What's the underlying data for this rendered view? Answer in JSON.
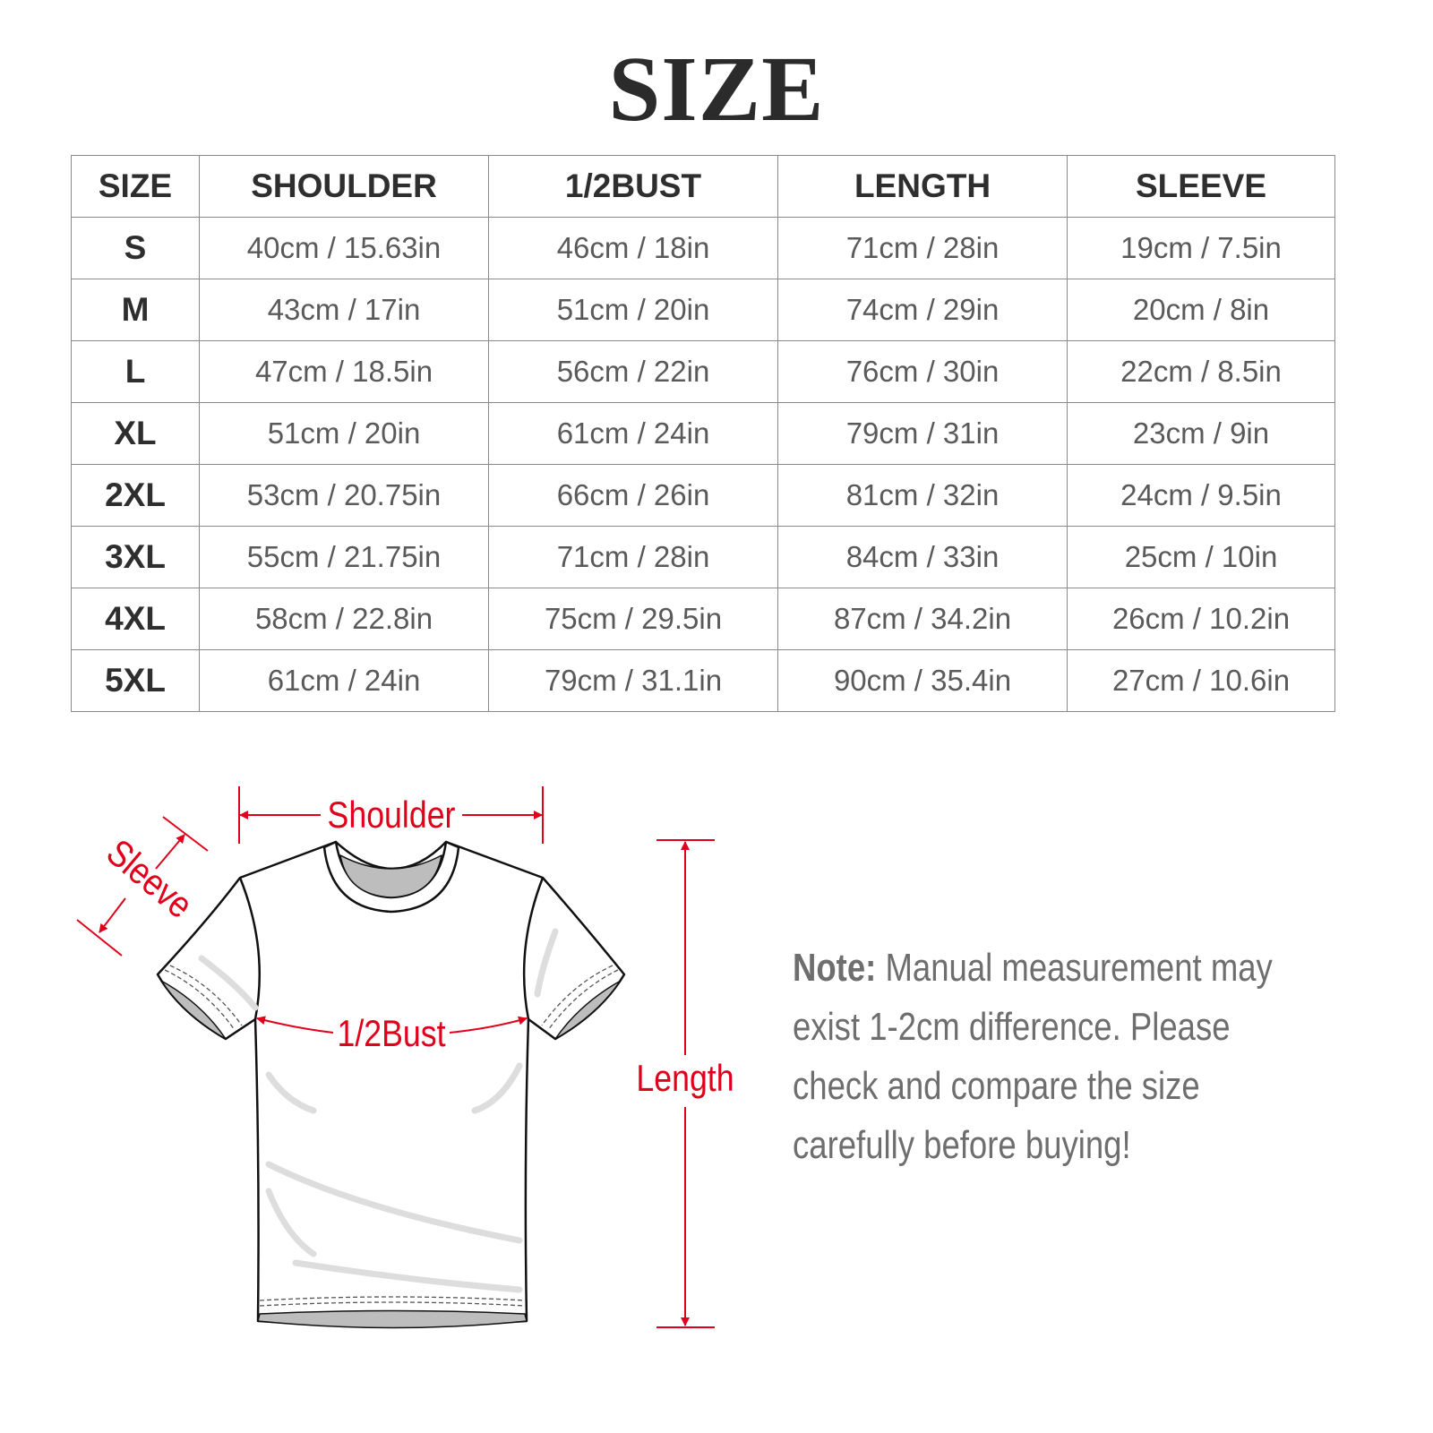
{
  "title": "SIZE",
  "table": {
    "headers": [
      "SIZE",
      "SHOULDER",
      "1/2BUST",
      "LENGTH",
      "SLEEVE"
    ],
    "rows": [
      [
        "S",
        "40cm / 15.63in",
        "46cm / 18in",
        "71cm / 28in",
        "19cm / 7.5in"
      ],
      [
        "M",
        "43cm / 17in",
        "51cm / 20in",
        "74cm / 29in",
        "20cm / 8in"
      ],
      [
        "L",
        "47cm / 18.5in",
        "56cm / 22in",
        "76cm / 30in",
        "22cm / 8.5in"
      ],
      [
        "XL",
        "51cm / 20in",
        "61cm / 24in",
        "79cm / 31in",
        "23cm / 9in"
      ],
      [
        "2XL",
        "53cm / 20.75in",
        "66cm / 26in",
        "81cm / 32in",
        "24cm / 9.5in"
      ],
      [
        "3XL",
        "55cm / 21.75in",
        "71cm / 28in",
        "84cm / 33in",
        "25cm / 10in"
      ],
      [
        "4XL",
        "58cm / 22.8in",
        "75cm / 29.5in",
        "87cm / 34.2in",
        "26cm / 10.2in"
      ],
      [
        "5XL",
        "61cm / 24in",
        "79cm / 31.1in",
        "90cm / 35.4in",
        "27cm / 10.6in"
      ]
    ]
  },
  "diagram": {
    "labels": {
      "shoulder": "Shoulder",
      "sleeve": "Sleeve",
      "bust": "1/2Bust",
      "length": "Length"
    },
    "accent_color": "#e0001b"
  },
  "note": {
    "label": "Note:",
    "text": " Manual measurement may exist 1-2cm difference. Please check and compare the size carefully before buying!"
  }
}
